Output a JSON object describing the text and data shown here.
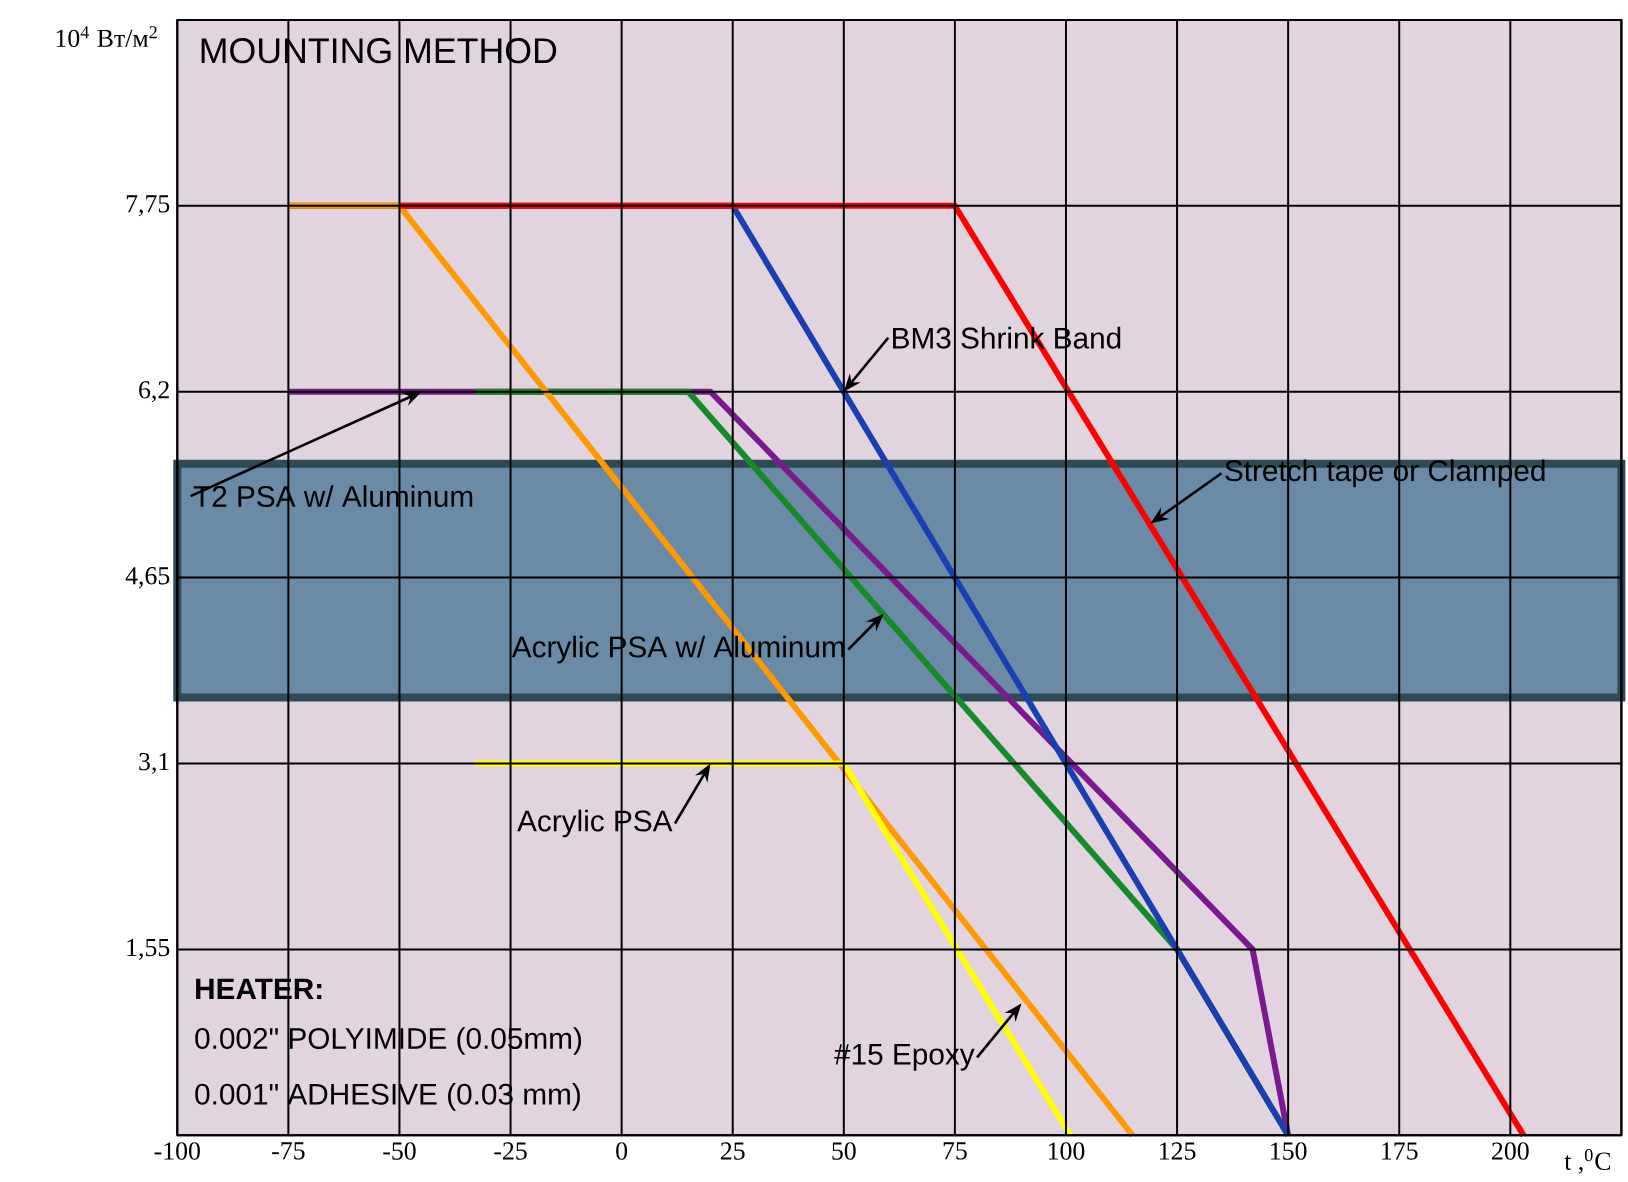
{
  "chart_data": {
    "type": "line",
    "title": "MOUNTING METHOD",
    "xlabel": "t ,$^{0}$C",
    "ylabel": "10$^{4}$ Вт/м$^{2}$",
    "xlim": [
      -100,
      225
    ],
    "ylim": [
      0,
      9.3
    ],
    "xticks": [
      -100,
      -75,
      -50,
      -25,
      0,
      25,
      50,
      75,
      100,
      125,
      150,
      175,
      200,
      {
        "value": 225,
        "label": null
      }
    ],
    "yticks": [
      {
        "value": 0,
        "label": null
      },
      {
        "value": 1.55,
        "label": "1,55"
      },
      {
        "value": 3.1,
        "label": "3,1"
      },
      {
        "value": 4.65,
        "label": "4,65"
      },
      {
        "value": 6.2,
        "label": "6,2"
      },
      {
        "value": 7.75,
        "label": "7,75"
      }
    ],
    "grid": true,
    "legend": false,
    "marker": "none",
    "line_style": "solid",
    "bands": [
      {
        "axis": "y",
        "from": 3.65,
        "to": 5.6,
        "color": "#6a8aa6"
      }
    ],
    "series": [
      {
        "color": "#7a1a8f",
        "x": [
          -75,
          20,
          142,
          150
        ],
        "values": [
          6.2,
          6.2,
          1.55,
          0
        ]
      },
      {
        "color": "#168a2a",
        "x": [
          -33,
          15,
          125,
          150
        ],
        "values": [
          6.2,
          6.2,
          1.55,
          0
        ]
      },
      {
        "color": "#1a3fb0",
        "x": [
          -75,
          25,
          150
        ],
        "values": [
          7.75,
          7.75,
          0
        ]
      },
      {
        "color": "#ff9900",
        "x": [
          -75,
          -50,
          115
        ],
        "values": [
          7.75,
          7.75,
          0
        ]
      },
      {
        "color": "#ff0000",
        "x": [
          -50,
          75,
          203
        ],
        "values": [
          7.75,
          7.75,
          0
        ]
      },
      {
        "color": "#ffff00",
        "x": [
          -33,
          50,
          101
        ],
        "values": [
          3.1,
          3.1,
          0
        ]
      }
    ],
    "annotations": [
      {
        "text": "BM3 Shrink Band",
        "x": 50,
        "y": 6.2
      },
      {
        "text": "Stretch tape or Clamped",
        "x": 119,
        "y": 5.1
      },
      {
        "text": "T2 PSA w/ Aluminum",
        "x": -45,
        "y": 6.2
      },
      {
        "text": "Acrylic PSA w/ Aluminum",
        "x": 59,
        "y": 4.35
      },
      {
        "text": "Acrylic PSA",
        "x": 20,
        "y": 3.1
      },
      {
        "text": "#15 Epoxy",
        "x": 90,
        "y": 1.1
      },
      "HEATER:",
      "0.002\" POLYIMIDE (0.05mm)",
      "0.001\" ADHESIVE (0.03 mm)"
    ]
  }
}
